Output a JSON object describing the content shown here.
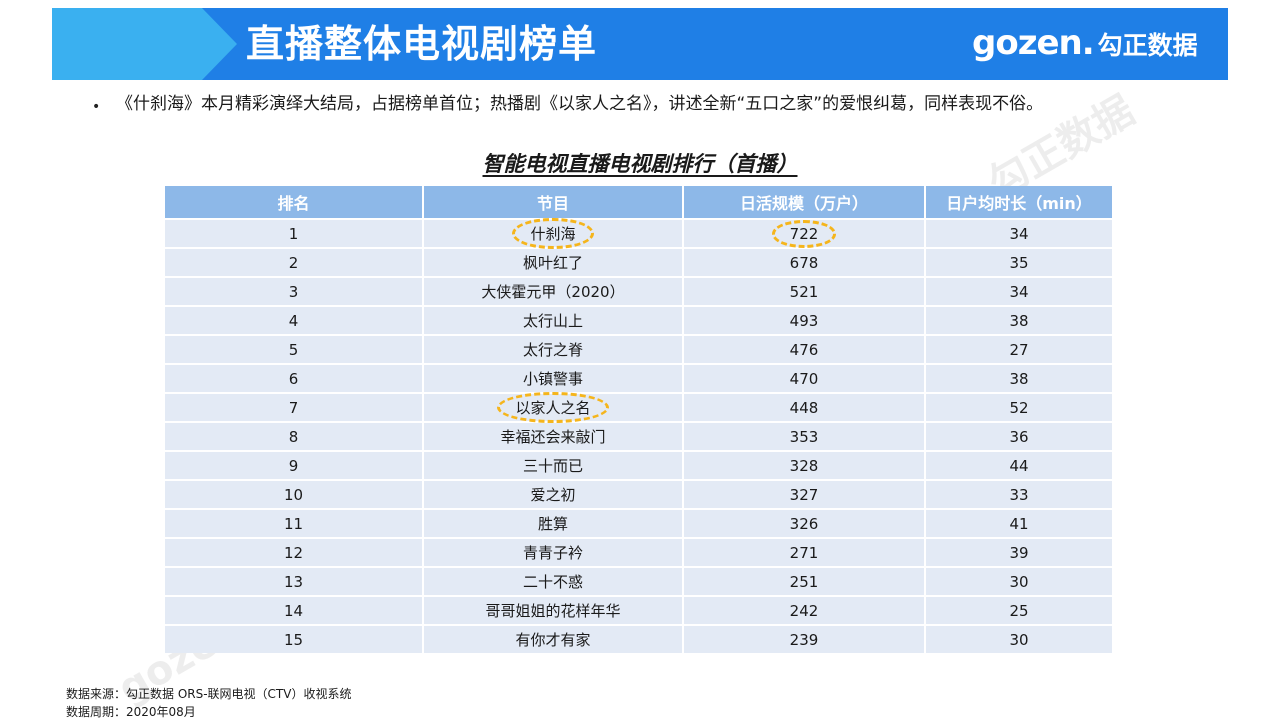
{
  "header": {
    "title": "直播整体电视剧榜单",
    "logo_en": "gozen.",
    "logo_cn": "勾正数据"
  },
  "bullet": {
    "text": "《什刹海》本月精彩演绎大结局，占据榜单首位；热播剧《以家人之名》，讲述全新“五口之家”的爱恨纠葛，同样表现不俗。"
  },
  "table": {
    "title": "智能电视直播电视剧排行（首播）",
    "headers": [
      "排名",
      "节目",
      "日活规模（万户）",
      "日户均时长（min）"
    ],
    "rows": [
      {
        "rank": "1",
        "name": "什刹海",
        "scale": "722",
        "duration": "34"
      },
      {
        "rank": "2",
        "name": "枫叶红了",
        "scale": "678",
        "duration": "35"
      },
      {
        "rank": "3",
        "name": "大侠霍元甲（2020）",
        "scale": "521",
        "duration": "34"
      },
      {
        "rank": "4",
        "name": "太行山上",
        "scale": "493",
        "duration": "38"
      },
      {
        "rank": "5",
        "name": "太行之脊",
        "scale": "476",
        "duration": "27"
      },
      {
        "rank": "6",
        "name": "小镇警事",
        "scale": "470",
        "duration": "38"
      },
      {
        "rank": "7",
        "name": "以家人之名",
        "scale": "448",
        "duration": "52"
      },
      {
        "rank": "8",
        "name": "幸福还会来敲门",
        "scale": "353",
        "duration": "36"
      },
      {
        "rank": "9",
        "name": "三十而已",
        "scale": "328",
        "duration": "44"
      },
      {
        "rank": "10",
        "name": "爱之初",
        "scale": "327",
        "duration": "33"
      },
      {
        "rank": "11",
        "name": "胜算",
        "scale": "326",
        "duration": "41"
      },
      {
        "rank": "12",
        "name": "青青子衿",
        "scale": "271",
        "duration": "39"
      },
      {
        "rank": "13",
        "name": "二十不惑",
        "scale": "251",
        "duration": "30"
      },
      {
        "rank": "14",
        "name": "哥哥姐姐的花样年华",
        "scale": "242",
        "duration": "25"
      },
      {
        "rank": "15",
        "name": "有你才有家",
        "scale": "239",
        "duration": "30"
      }
    ]
  },
  "footer": {
    "source": "数据来源：勾正数据 ORS-联网电视（CTV）收视系统",
    "period": "数据周期：2020年08月"
  },
  "colors": {
    "banner": "#1f7fe6",
    "banner_accent": "#3ab0f0",
    "table_header": "#8db8e8",
    "table_row": "#e3eaf5",
    "highlight": "#f5b51c"
  }
}
